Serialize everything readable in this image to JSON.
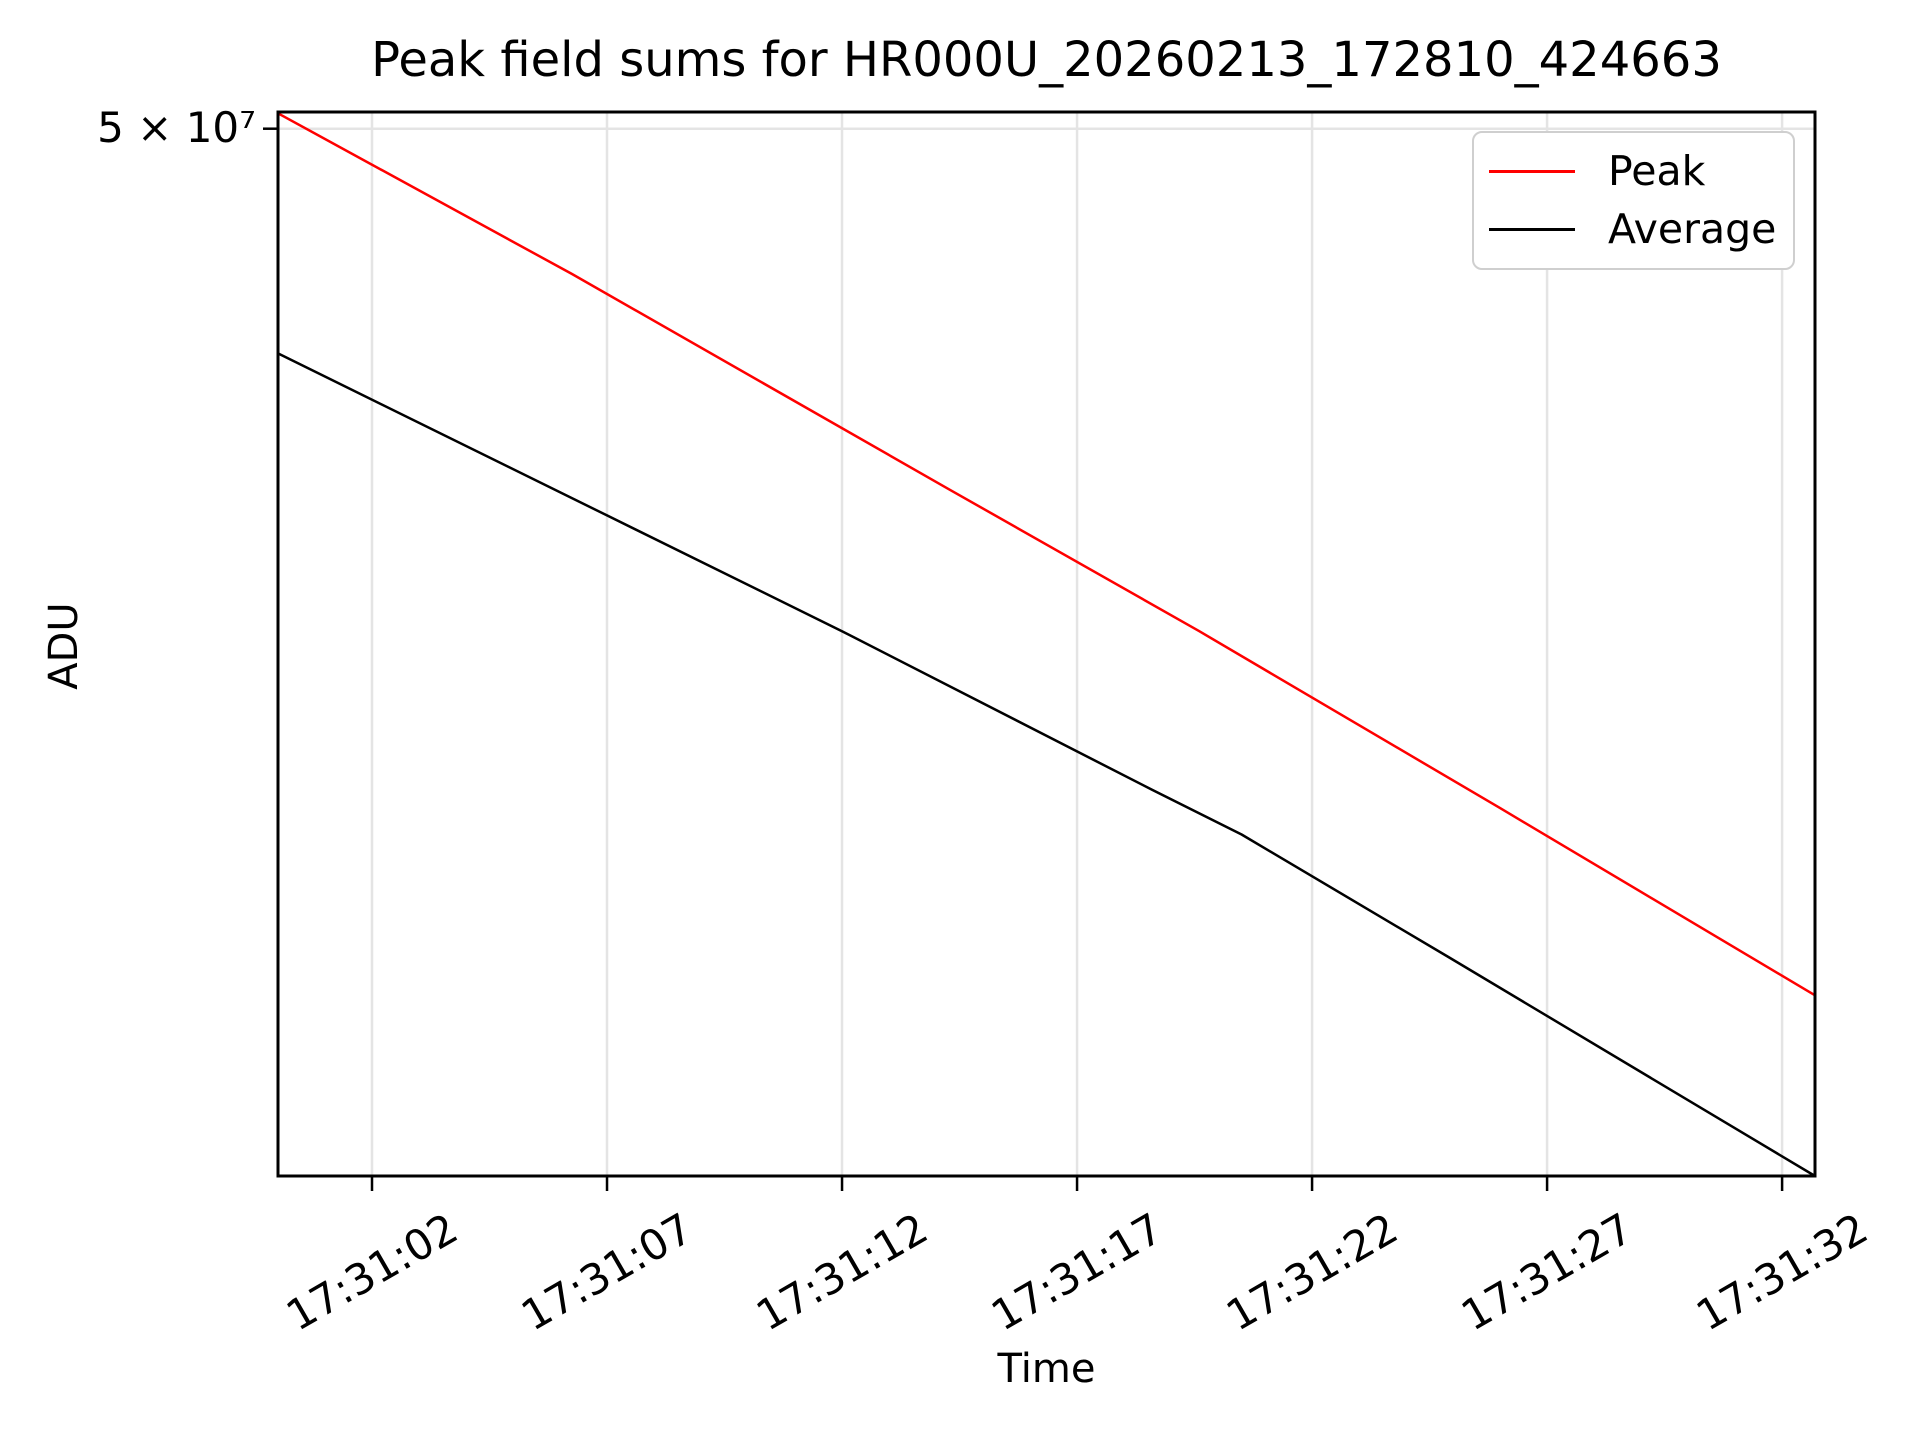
{
  "chart_data": {
    "type": "line",
    "title": "Peak field sums for HR000U_20260213_172810_424663",
    "xlabel": "Time",
    "ylabel": "ADU",
    "yscale": "log",
    "grid": true,
    "legend_position": "upper right",
    "x_seconds_base": "17:31:00",
    "xlim_t": [
      0,
      32.7
    ],
    "ylim": [
      10000000,
      51300000
    ],
    "xticks": [
      {
        "t": 2,
        "label": "17:31:02"
      },
      {
        "t": 7,
        "label": "17:31:07"
      },
      {
        "t": 12,
        "label": "17:31:12"
      },
      {
        "t": 17,
        "label": "17:31:17"
      },
      {
        "t": 22,
        "label": "17:31:22"
      },
      {
        "t": 27,
        "label": "17:31:27"
      },
      {
        "t": 32,
        "label": "17:31:32"
      }
    ],
    "yticks": [
      {
        "value": 50000000,
        "label": "5 × 10⁷"
      }
    ],
    "series": [
      {
        "name": "Peak",
        "color": "#ff0000",
        "points": [
          [
            0,
            51200000
          ],
          [
            6.25,
            40000000
          ],
          [
            14.3,
            28700000
          ],
          [
            19.6,
            23100000
          ],
          [
            26,
            17600000
          ],
          [
            32.7,
            13200000
          ]
        ]
      },
      {
        "name": "Average",
        "color": "#000000",
        "points": [
          [
            0,
            35400000
          ],
          [
            7,
            27600000
          ],
          [
            12,
            23100000
          ],
          [
            18.6,
            18100000
          ],
          [
            20.5,
            16900000
          ],
          [
            24.9,
            14000000
          ],
          [
            32.7,
            10000000
          ]
        ]
      }
    ]
  }
}
